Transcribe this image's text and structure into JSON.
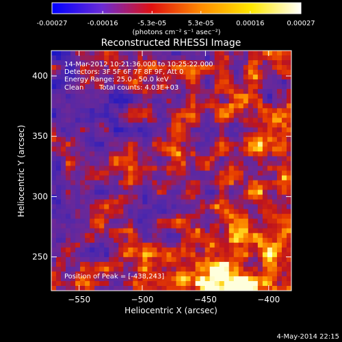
{
  "colorbar": {
    "tick_labels": [
      "-0.00027",
      "-0.00016",
      "-5.3e-05",
      "5.3e-05",
      "0.00016",
      "0.00027"
    ],
    "tick_values": [
      -0.00027,
      -0.00016,
      -5.3e-05,
      5.3e-05,
      0.00016,
      0.00027
    ],
    "range": [
      -0.00027,
      0.00027
    ],
    "units_label": "(photons cm⁻² s⁻¹ asec⁻²)",
    "colors": [
      "#0000ff",
      "#6a2bd6",
      "#e01010",
      "#ff8c00",
      "#ffe800",
      "#ffffff"
    ]
  },
  "chart_data": {
    "type": "heatmap",
    "title": "Reconstructed RHESSI Image",
    "xlabel": "Heliocentric X (arcsec)",
    "ylabel": "Heliocentric Y (arcsec)",
    "xlim": [
      -572,
      -382
    ],
    "ylim": [
      222,
      421
    ],
    "x_ticks": [
      -550,
      -500,
      -450,
      -400
    ],
    "y_ticks": [
      250,
      300,
      350,
      400
    ],
    "x_tick_labels": [
      "−550",
      "−500",
      "−450",
      "−400"
    ],
    "y_tick_labels": [
      "250",
      "300",
      "350",
      "400"
    ],
    "peak": [
      -438,
      243
    ],
    "annotations": {
      "time_range": "14-Mar-2012 10:21:36.000 to 10:25:22.000",
      "detectors": "Detectors: 3F 5F 6F 7F 8F 9F, Att 0",
      "energy_range": "Energy Range: 25.0 - 50.0 keV",
      "method": "Clean",
      "total_counts": "Total counts: 4.03E+03",
      "peak_position": "Position of Peak = [-438,243]"
    }
  },
  "footer": {
    "timestamp": "4-May-2014 22:15"
  }
}
